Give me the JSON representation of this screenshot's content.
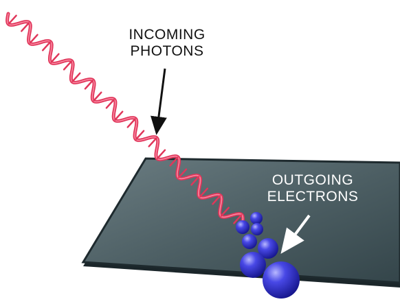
{
  "labels": {
    "incoming_photons": {
      "line1": "INCOMING",
      "line2": "PHOTONS"
    },
    "outgoing_electrons": {
      "line1": "OUTGOING",
      "line2": "ELECTRONS"
    }
  },
  "colors": {
    "background": "#ffffff",
    "plate_top": "#4b5d62",
    "plate_edge": "#1e2a2e",
    "photon_wave": "#e0365a",
    "photon_highlight": "#ff9fb4",
    "electron": "#2626c8",
    "electron_highlight": "#a9a9ff",
    "arrow_photons": "#111111",
    "arrow_electrons": "#ffffff",
    "label_photons": "#111111",
    "label_electrons": "#ffffff"
  }
}
